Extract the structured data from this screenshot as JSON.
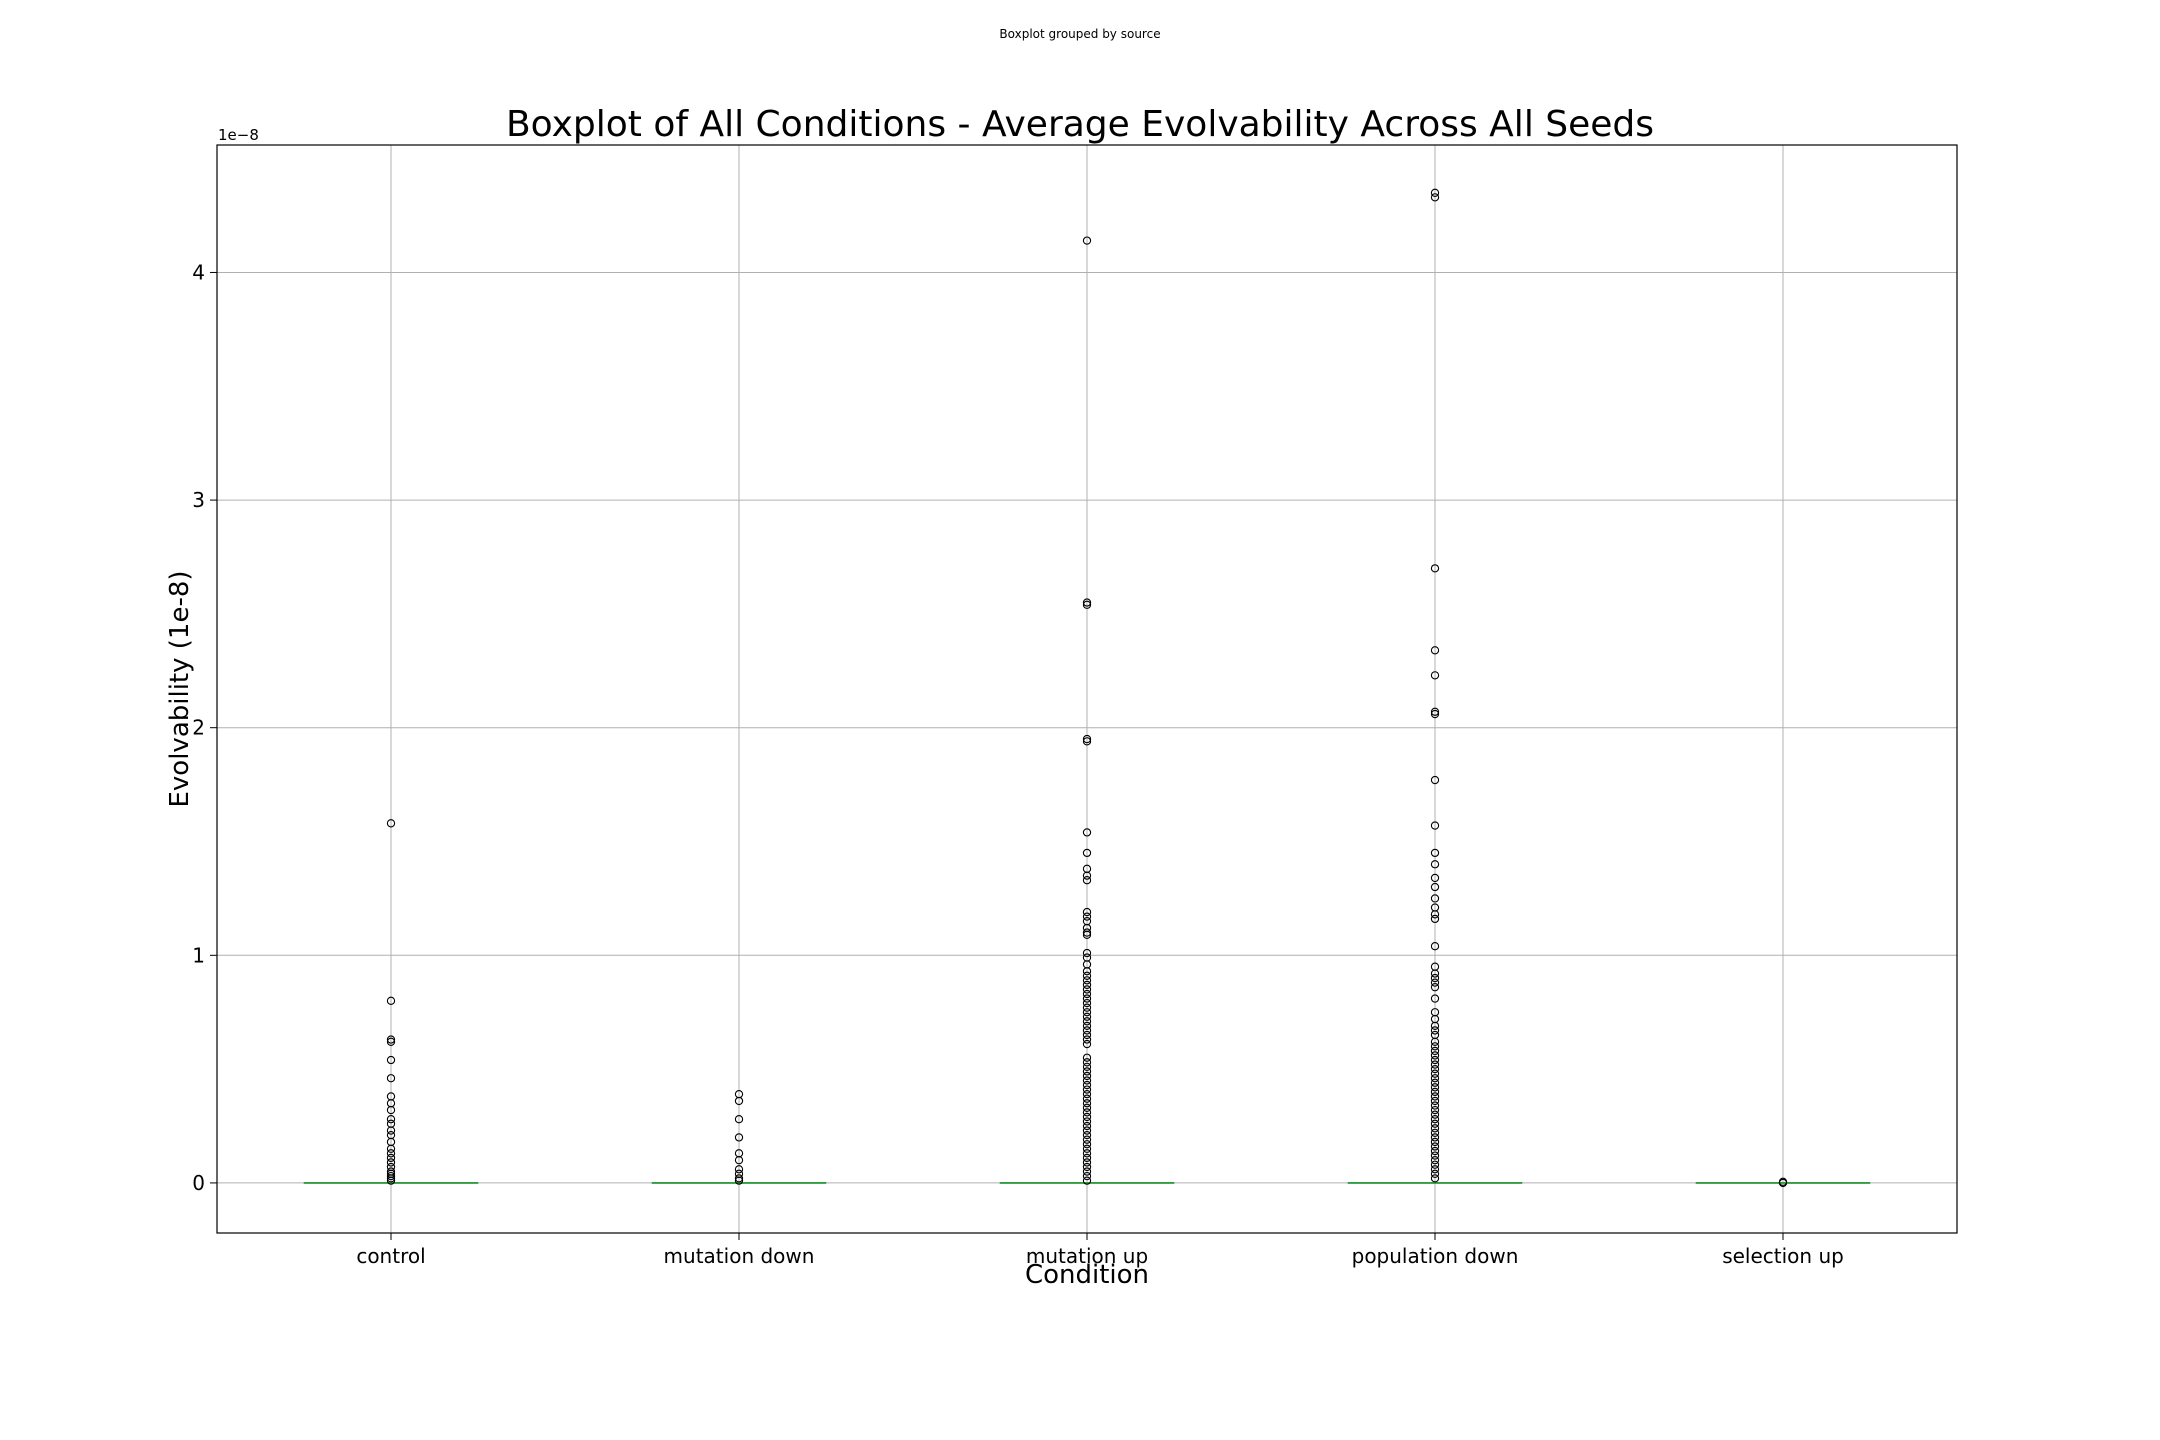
{
  "suptitle": "Boxplot grouped by source",
  "chart_data": {
    "type": "boxplot",
    "title": "Boxplot of All Conditions - Average Evolvability Across All Seeds",
    "xlabel": "Condition",
    "ylabel": "Evolvability (1e-8)",
    "offset_text": "1e−8",
    "ylim": [
      -0.22,
      4.56
    ],
    "yticks": [
      0,
      1,
      2,
      3,
      4
    ],
    "ytick_labels": [
      "0",
      "1",
      "2",
      "3",
      "4"
    ],
    "grid": true,
    "categories": [
      "control",
      "mutation down",
      "mutation up",
      "population down",
      "selection up"
    ],
    "median_color": "#2ca02c",
    "outlier_color": "#000000",
    "medians": [
      0,
      0,
      0,
      0,
      0
    ],
    "outliers": [
      [
        1.58,
        0.8,
        0.63,
        0.62,
        0.54,
        0.46,
        0.38,
        0.35,
        0.32,
        0.28,
        0.26,
        0.23,
        0.21,
        0.18,
        0.15,
        0.13,
        0.11,
        0.09,
        0.07,
        0.05,
        0.04,
        0.03,
        0.02,
        0.01
      ],
      [
        0.39,
        0.36,
        0.28,
        0.2,
        0.13,
        0.1,
        0.06,
        0.04,
        0.02,
        0.01
      ],
      [
        4.14,
        2.55,
        2.54,
        1.95,
        1.94,
        1.54,
        1.45,
        1.38,
        1.35,
        1.33,
        1.19,
        1.17,
        1.15,
        1.12,
        1.1,
        1.09,
        1.01,
        0.99,
        0.96,
        0.93,
        0.91,
        0.89,
        0.87,
        0.85,
        0.83,
        0.81,
        0.79,
        0.77,
        0.75,
        0.73,
        0.71,
        0.69,
        0.67,
        0.65,
        0.63,
        0.61,
        0.55,
        0.53,
        0.51,
        0.49,
        0.47,
        0.45,
        0.43,
        0.41,
        0.39,
        0.37,
        0.35,
        0.33,
        0.31,
        0.29,
        0.27,
        0.25,
        0.23,
        0.21,
        0.19,
        0.17,
        0.15,
        0.13,
        0.11,
        0.09,
        0.07,
        0.05,
        0.03,
        0.01
      ],
      [
        4.35,
        4.33,
        2.7,
        2.34,
        2.23,
        2.07,
        2.06,
        1.77,
        1.57,
        1.45,
        1.4,
        1.34,
        1.3,
        1.25,
        1.21,
        1.18,
        1.16,
        1.04,
        0.95,
        0.92,
        0.9,
        0.88,
        0.86,
        0.81,
        0.75,
        0.72,
        0.69,
        0.67,
        0.65,
        0.62,
        0.6,
        0.58,
        0.56,
        0.54,
        0.52,
        0.5,
        0.48,
        0.46,
        0.44,
        0.42,
        0.4,
        0.38,
        0.36,
        0.34,
        0.32,
        0.3,
        0.28,
        0.26,
        0.24,
        0.22,
        0.2,
        0.18,
        0.16,
        0.14,
        0.12,
        0.1,
        0.08,
        0.06,
        0.04,
        0.02
      ],
      [
        0.005,
        0.0
      ]
    ]
  }
}
